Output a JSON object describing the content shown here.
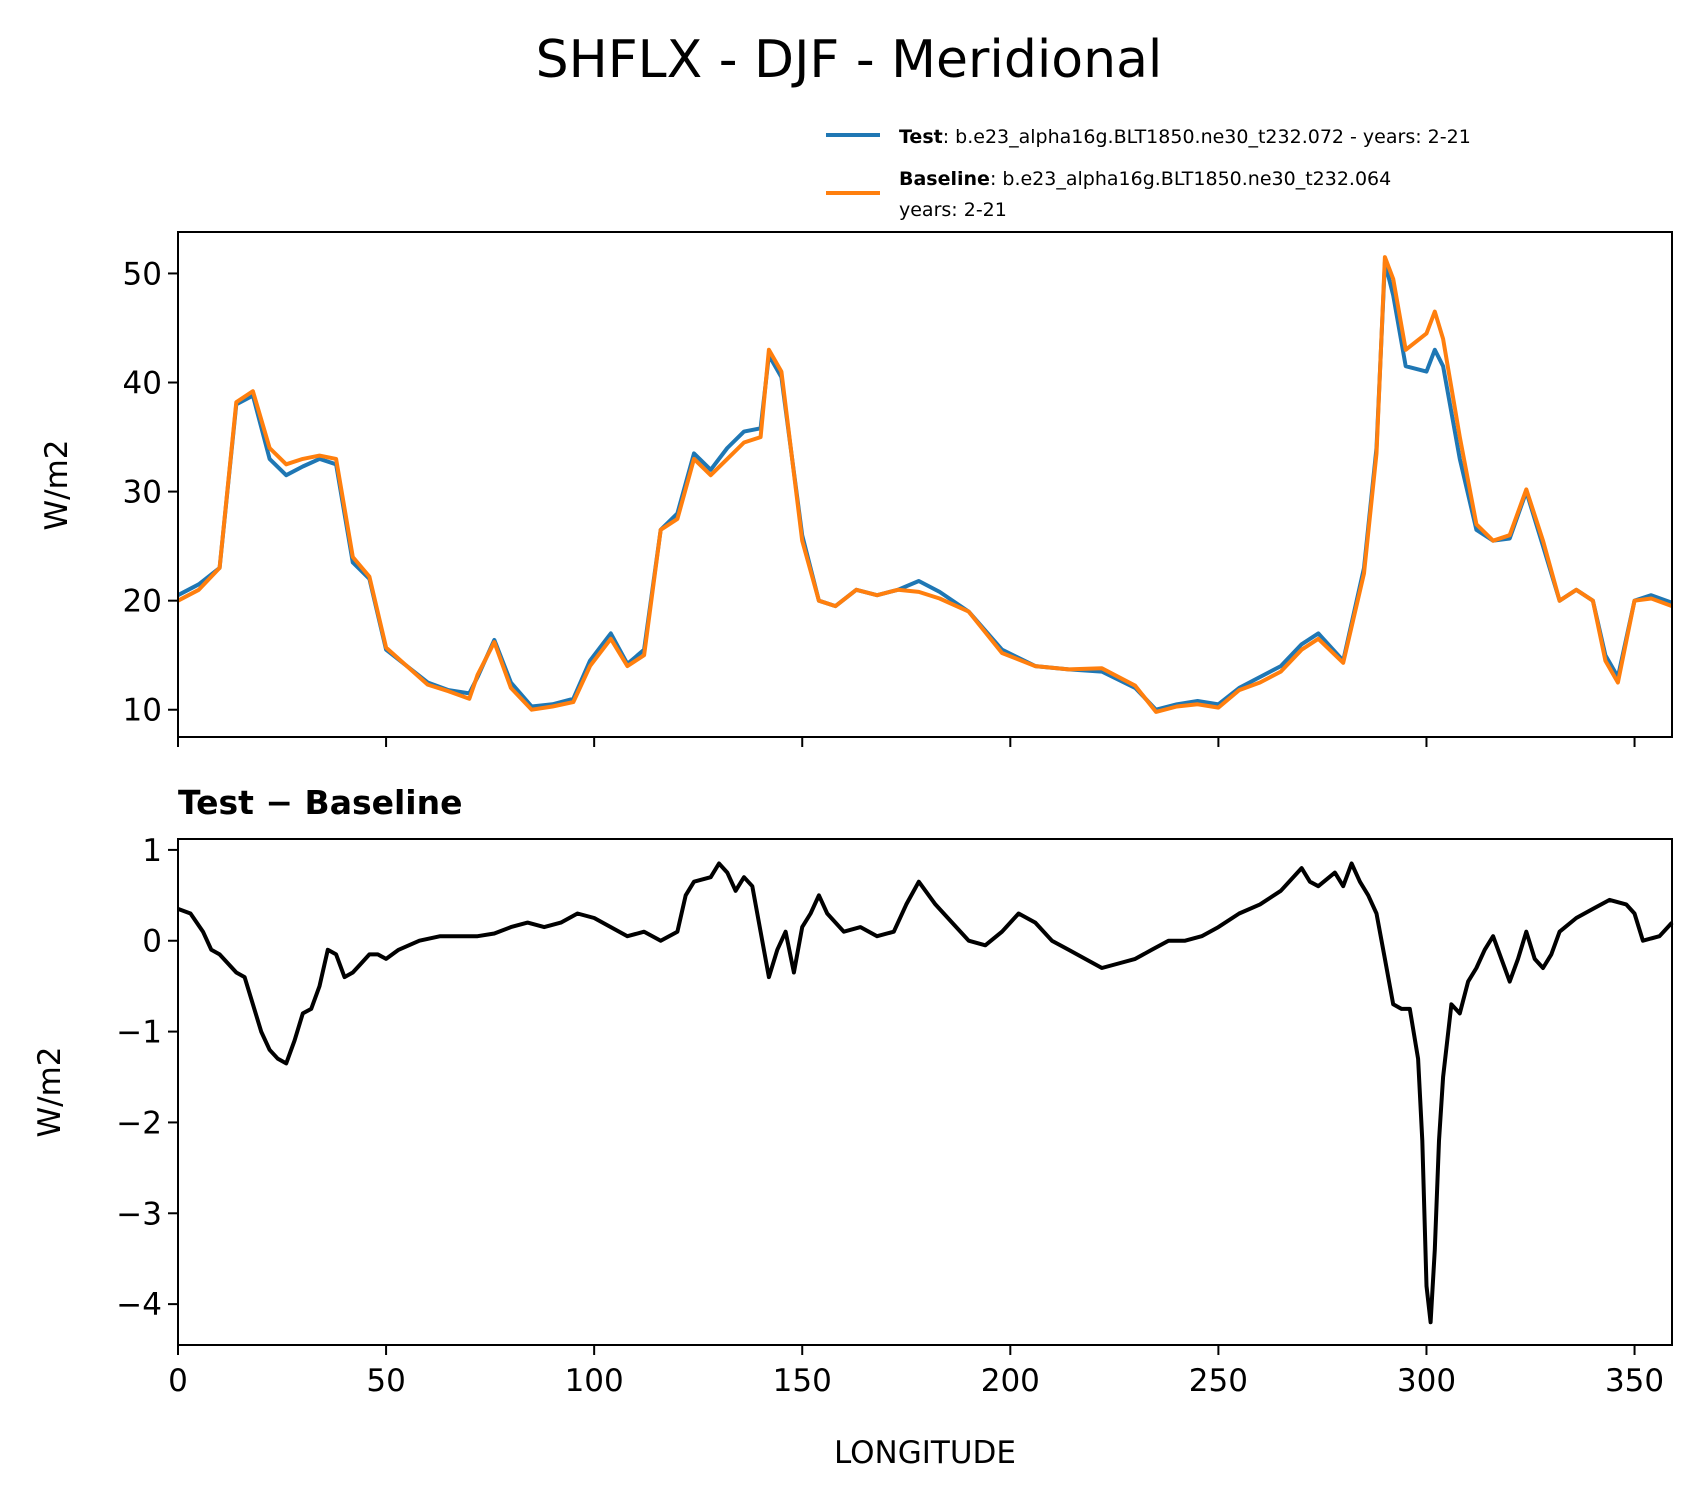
{
  "title": "SHFLX - DJF - Meridional",
  "legend": {
    "test_bold": "Test",
    "test_text": ": b.e23_alpha16g.BLT1850.ne30_t232.072 - years: 2-21",
    "base_bold": "Baseline",
    "base_text": ": b.e23_alpha16g.BLT1850.ne30_t232.064",
    "base_text2": "years: 2-21"
  },
  "colors": {
    "test": "#1f77b4",
    "baseline": "#ff7f0e",
    "diff": "#000000"
  },
  "chart_data": [
    {
      "type": "line",
      "title": "",
      "xlabel": "",
      "ylabel": "W/m2",
      "xlim": [
        0,
        359
      ],
      "ylim": [
        7.5,
        53.8
      ],
      "xticks": [
        0,
        50,
        100,
        150,
        200,
        250,
        300,
        350
      ],
      "yticks": [
        10,
        20,
        30,
        40,
        50
      ],
      "x": [
        0,
        5,
        10,
        14,
        18,
        22,
        26,
        30,
        34,
        38,
        42,
        46,
        50,
        55,
        60,
        65,
        70,
        72,
        76,
        80,
        85,
        90,
        95,
        99,
        104,
        108,
        112,
        116,
        120,
        124,
        128,
        132,
        136,
        140,
        142,
        145,
        150,
        154,
        158,
        163,
        168,
        173,
        178,
        183,
        190,
        198,
        206,
        214,
        222,
        230,
        235,
        240,
        245,
        250,
        255,
        260,
        265,
        270,
        274,
        280,
        285,
        288,
        290,
        292,
        295,
        300,
        302,
        304,
        308,
        312,
        316,
        320,
        324,
        328,
        332,
        336,
        340,
        343,
        346,
        350,
        354,
        359
      ],
      "series": [
        {
          "name": "Test",
          "values": [
            20.5,
            21.5,
            23,
            38,
            38.8,
            33,
            31.5,
            32.3,
            33,
            32.5,
            23.5,
            22,
            15.5,
            14,
            12.5,
            11.8,
            11.5,
            13,
            16.4,
            12.5,
            10.3,
            10.5,
            11,
            14.5,
            17,
            14.2,
            15.5,
            26.5,
            28,
            33.5,
            32,
            34,
            35.5,
            35.8,
            42.5,
            40.5,
            26,
            20,
            19.5,
            21,
            20.5,
            21,
            21.8,
            20.8,
            19,
            15.5,
            14,
            13.7,
            13.5,
            12,
            10,
            10.5,
            10.8,
            10.5,
            12,
            13,
            14,
            16,
            17,
            14.5,
            23,
            34,
            51,
            48,
            41.5,
            41,
            43,
            41.5,
            33,
            26.5,
            25.5,
            25.7,
            30,
            25,
            20,
            21,
            20,
            15,
            13,
            20,
            20.5,
            19.8
          ]
        },
        {
          "name": "Baseline",
          "values": [
            20,
            21,
            23,
            38.2,
            39.2,
            34,
            32.5,
            33,
            33.3,
            33,
            24,
            22.2,
            15.7,
            14,
            12.3,
            11.7,
            11,
            13.2,
            16.2,
            12,
            10,
            10.3,
            10.7,
            14,
            16.5,
            14,
            15,
            26.5,
            27.5,
            33,
            31.5,
            33,
            34.5,
            35,
            43,
            41,
            25.5,
            20,
            19.5,
            21,
            20.5,
            21,
            20.8,
            20.2,
            19,
            15.2,
            14,
            13.7,
            13.8,
            12.2,
            9.8,
            10.3,
            10.5,
            10.2,
            11.8,
            12.5,
            13.5,
            15.5,
            16.5,
            14.3,
            22.5,
            33.5,
            51.5,
            49.5,
            43,
            44.5,
            46.5,
            44,
            35,
            27,
            25.5,
            26,
            30.2,
            25.5,
            20,
            21,
            20,
            14.5,
            12.5,
            20,
            20.2,
            19.5
          ]
        }
      ]
    },
    {
      "type": "line",
      "title": "Test − Baseline",
      "xlabel": "LONGITUDE",
      "ylabel": "W/m2",
      "xlim": [
        0,
        359
      ],
      "ylim": [
        -4.45,
        1.12
      ],
      "xticks": [
        0,
        50,
        100,
        150,
        200,
        250,
        300,
        350
      ],
      "yticks": [
        1,
        0,
        -1,
        -2,
        -3,
        -4
      ],
      "ytick_labels": [
        "1",
        "0",
        "−1",
        "−2",
        "−3",
        "−4"
      ],
      "x": [
        0,
        3,
        6,
        8,
        10,
        14,
        16,
        18,
        20,
        22,
        24,
        26,
        28,
        30,
        32,
        34,
        36,
        38,
        40,
        42,
        44,
        46,
        48,
        50,
        53,
        58,
        63,
        68,
        72,
        76,
        80,
        84,
        88,
        92,
        96,
        100,
        104,
        108,
        112,
        116,
        120,
        122,
        124,
        128,
        130,
        132,
        134,
        136,
        138,
        140,
        142,
        144,
        146,
        148,
        150,
        152,
        154,
        156,
        160,
        164,
        168,
        172,
        175,
        178,
        182,
        186,
        190,
        194,
        198,
        202,
        206,
        210,
        214,
        218,
        222,
        226,
        230,
        234,
        238,
        242,
        246,
        250,
        255,
        260,
        265,
        270,
        272,
        274,
        278,
        280,
        282,
        284,
        286,
        288,
        290,
        292,
        294,
        296,
        298,
        299,
        300,
        301,
        302,
        303,
        304,
        306,
        308,
        310,
        312,
        314,
        316,
        318,
        320,
        322,
        324,
        326,
        328,
        330,
        332,
        336,
        340,
        344,
        348,
        350,
        352,
        356,
        359
      ],
      "series": [
        {
          "name": "Test − Baseline",
          "values": [
            0.35,
            0.3,
            0.1,
            -0.1,
            -0.15,
            -0.35,
            -0.4,
            -0.7,
            -1.0,
            -1.2,
            -1.3,
            -1.35,
            -1.1,
            -0.8,
            -0.75,
            -0.5,
            -0.1,
            -0.15,
            -0.4,
            -0.35,
            -0.25,
            -0.15,
            -0.15,
            -0.2,
            -0.1,
            0.0,
            0.05,
            0.05,
            0.05,
            0.08,
            0.15,
            0.2,
            0.15,
            0.2,
            0.3,
            0.25,
            0.15,
            0.05,
            0.1,
            0.0,
            0.1,
            0.5,
            0.65,
            0.7,
            0.85,
            0.75,
            0.55,
            0.7,
            0.6,
            0.1,
            -0.4,
            -0.1,
            0.1,
            -0.35,
            0.15,
            0.3,
            0.5,
            0.3,
            0.1,
            0.15,
            0.05,
            0.1,
            0.4,
            0.65,
            0.4,
            0.2,
            0.0,
            -0.05,
            0.1,
            0.3,
            0.2,
            0.0,
            -0.1,
            -0.2,
            -0.3,
            -0.25,
            -0.2,
            -0.1,
            0.0,
            0.0,
            0.05,
            0.15,
            0.3,
            0.4,
            0.55,
            0.8,
            0.65,
            0.6,
            0.75,
            0.6,
            0.85,
            0.65,
            0.5,
            0.3,
            -0.2,
            -0.7,
            -0.75,
            -0.75,
            -1.3,
            -2.2,
            -3.8,
            -4.2,
            -3.4,
            -2.2,
            -1.5,
            -0.7,
            -0.8,
            -0.45,
            -0.3,
            -0.1,
            0.05,
            -0.2,
            -0.45,
            -0.2,
            0.1,
            -0.2,
            -0.3,
            -0.15,
            0.1,
            0.25,
            0.35,
            0.45,
            0.4,
            0.3,
            0.0,
            0.05,
            0.2
          ]
        }
      ]
    }
  ]
}
